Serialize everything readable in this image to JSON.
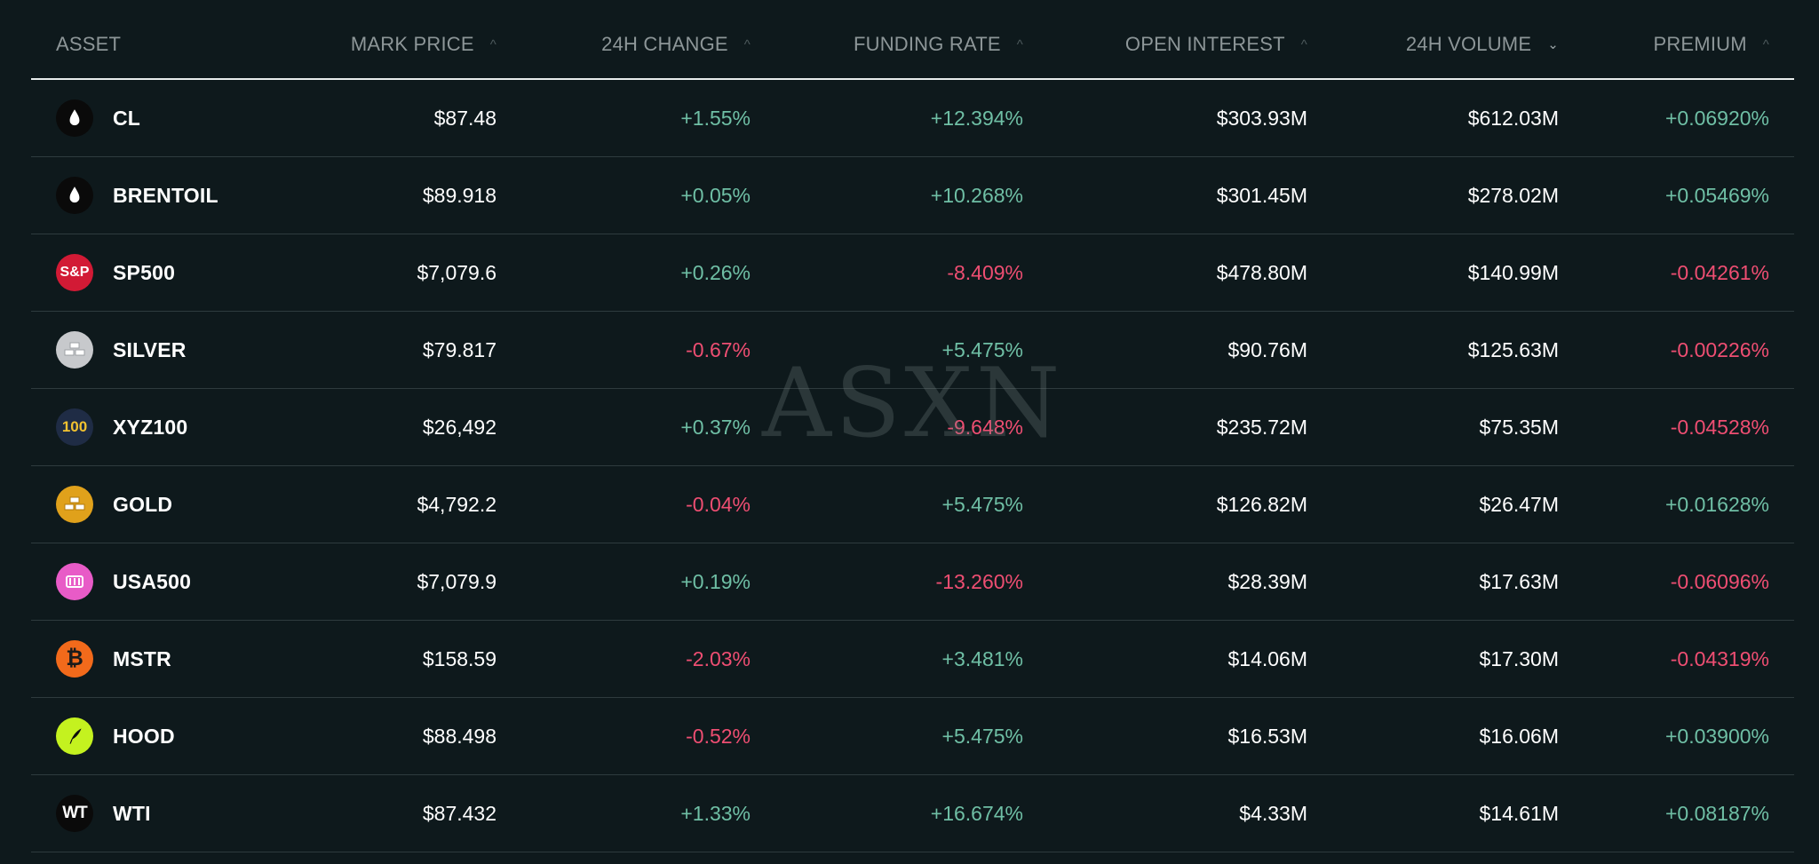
{
  "headers": {
    "asset": "ASSET",
    "mark_price": "MARK PRICE",
    "change_24h": "24H CHANGE",
    "funding_rate": "FUNDING RATE",
    "open_interest": "OPEN INTEREST",
    "volume_24h": "24H VOLUME",
    "premium": "PREMIUM",
    "sort_up": "^",
    "sort_down": "⌄"
  },
  "watermark": "ASXN",
  "colors": {
    "positive": "#6fbfa5",
    "negative": "#ee4e72"
  },
  "rows": [
    {
      "asset": "CL",
      "icon": "oil-drop-icon",
      "price": "$87.48",
      "change": "+1.55%",
      "funding": "+12.394%",
      "oi": "$303.93M",
      "volume": "$612.03M",
      "premium": "+0.06920%"
    },
    {
      "asset": "BRENTOIL",
      "icon": "oil-drop-icon",
      "price": "$89.918",
      "change": "+0.05%",
      "funding": "+10.268%",
      "oi": "$301.45M",
      "volume": "$278.02M",
      "premium": "+0.05469%"
    },
    {
      "asset": "SP500",
      "icon": "sp-logo-icon",
      "icon_text": "S&P",
      "price": "$7,079.6",
      "change": "+0.26%",
      "funding": "-8.409%",
      "oi": "$478.80M",
      "volume": "$140.99M",
      "premium": "-0.04261%"
    },
    {
      "asset": "SILVER",
      "icon": "silver-bars-icon",
      "price": "$79.817",
      "change": "-0.67%",
      "funding": "+5.475%",
      "oi": "$90.76M",
      "volume": "$125.63M",
      "premium": "-0.00226%"
    },
    {
      "asset": "XYZ100",
      "icon": "xyz100-logo-icon",
      "icon_text": "100",
      "price": "$26,492",
      "change": "+0.37%",
      "funding": "-9.648%",
      "oi": "$235.72M",
      "volume": "$75.35M",
      "premium": "-0.04528%"
    },
    {
      "asset": "GOLD",
      "icon": "gold-bars-icon",
      "price": "$4,792.2",
      "change": "-0.04%",
      "funding": "+5.475%",
      "oi": "$126.82M",
      "volume": "$26.47M",
      "premium": "+0.01628%"
    },
    {
      "asset": "USA500",
      "icon": "usa500-logo-icon",
      "price": "$7,079.9",
      "change": "+0.19%",
      "funding": "-13.260%",
      "oi": "$28.39M",
      "volume": "$17.63M",
      "premium": "-0.06096%"
    },
    {
      "asset": "MSTR",
      "icon": "bitcoin-icon",
      "icon_text": "₿",
      "price": "$158.59",
      "change": "-2.03%",
      "funding": "+3.481%",
      "oi": "$14.06M",
      "volume": "$17.30M",
      "premium": "-0.04319%"
    },
    {
      "asset": "HOOD",
      "icon": "robinhood-feather-icon",
      "price": "$88.498",
      "change": "-0.52%",
      "funding": "+5.475%",
      "oi": "$16.53M",
      "volume": "$16.06M",
      "premium": "+0.03900%"
    },
    {
      "asset": "WTI",
      "icon": "wti-logo-icon",
      "icon_text": "WT",
      "price": "$87.432",
      "change": "+1.33%",
      "funding": "+16.674%",
      "oi": "$4.33M",
      "volume": "$14.61M",
      "premium": "+0.08187%"
    }
  ]
}
